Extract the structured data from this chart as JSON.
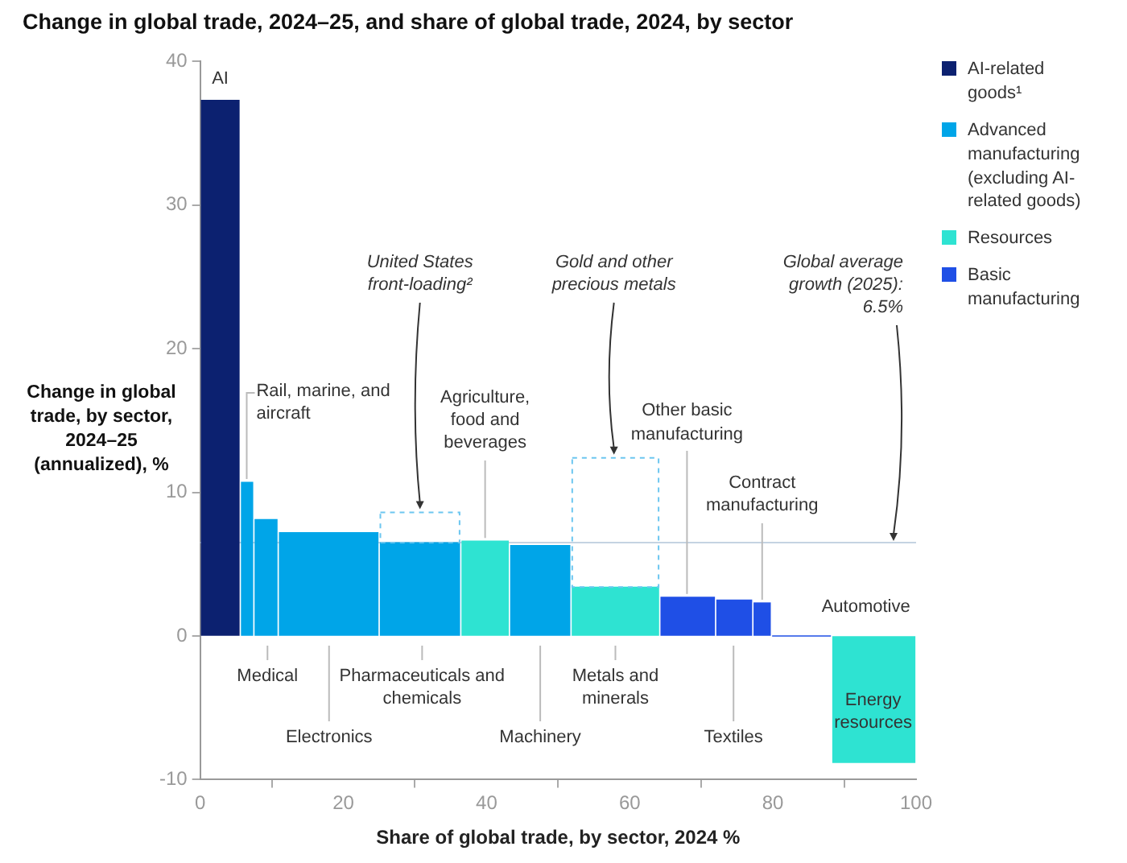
{
  "chart_data": {
    "type": "histogram",
    "title": "Change in global trade, 2024–25, and share of global trade, 2024, by sector",
    "xlabel": "Share of global trade, by sector, 2024 %",
    "ylabel": "Change in global trade, by sector, 2024–25 (annualized), %",
    "bins": [
      0,
      5.6,
      7.5,
      10.9,
      25,
      36.4,
      43.2,
      51.8,
      64.2,
      72,
      77.2,
      79.8,
      88.2,
      100
    ],
    "series": [
      {
        "name": "AI-related goods¹",
        "color": "#0c2170",
        "values": [
          37.3,
          null,
          null,
          null,
          null,
          null,
          null,
          null,
          null,
          null,
          null,
          null,
          null
        ]
      },
      {
        "name": "Advanced manufacturing (excluding AI-related goods)",
        "color": "#00a5e8",
        "values": [
          null,
          10.7,
          8.1,
          7.2,
          6.5,
          null,
          6.3,
          null,
          null,
          null,
          null,
          null,
          null
        ]
      },
      {
        "name": "Resources",
        "color": "#2ee3d2",
        "values": [
          null,
          null,
          null,
          null,
          null,
          6.6,
          null,
          3.4,
          null,
          null,
          null,
          null,
          -8.8
        ]
      },
      {
        "name": "Basic manufacturing",
        "color": "#1f4fe6",
        "values": [
          null,
          null,
          null,
          null,
          null,
          null,
          null,
          null,
          2.7,
          2.5,
          2.3,
          0,
          null
        ]
      },
      {
        "color": "#6cc6f0",
        "line_style": "dashed",
        "base": [
          null,
          null,
          null,
          null,
          6.5,
          null,
          null,
          3.4,
          null,
          null,
          null,
          null,
          null
        ],
        "values": [
          null,
          null,
          null,
          null,
          2.1,
          null,
          null,
          9.0,
          null,
          null,
          null,
          null,
          null
        ]
      }
    ],
    "xlim": [
      0,
      100
    ],
    "xticks": [
      0,
      20,
      40,
      60,
      80,
      100
    ],
    "ylim": [
      -10,
      40
    ],
    "yticks": [
      -10,
      0,
      10,
      20,
      30,
      40
    ],
    "legend": "right",
    "ref_lines": [
      {
        "axis": "y",
        "value": 6.5,
        "label": "Global average growth (2025): 6.5%",
        "color": "#c5d3e2"
      }
    ],
    "annotations": [
      {
        "text": "AI",
        "x": 2.8,
        "y": 37.3
      },
      {
        "text": "Rail, marine, and aircraft",
        "x": 6.5,
        "y": 10.7
      },
      {
        "text": "Medical",
        "x": 9.4,
        "y": 0
      },
      {
        "text": "Pharmaceuticals and chemicals",
        "x": 31,
        "y": 0
      },
      {
        "text": "Electronics",
        "x": 18
      },
      {
        "text": "Machinery",
        "x": 47.5
      },
      {
        "text": "Metals and minerals",
        "x": 58,
        "y": 0
      },
      {
        "text": "Textiles",
        "x": 74.5
      },
      {
        "text": "Agriculture, food and beverages",
        "x": 39.8,
        "y": 6.6
      },
      {
        "text": "Other basic manufacturing",
        "x": 68,
        "y": 2.7
      },
      {
        "text": "Contract manufacturing",
        "x": 78.5,
        "y": 2.3
      },
      {
        "text": "Automotive",
        "x": 84,
        "y": 0
      },
      {
        "text": "Energy resources",
        "x": 94,
        "y": -8.8
      },
      {
        "text": "United States front-loading²",
        "x": 30.7,
        "y": 8.6
      },
      {
        "text": "Gold and other precious metals",
        "x": 57.8,
        "y": 12.4
      }
    ]
  }
}
